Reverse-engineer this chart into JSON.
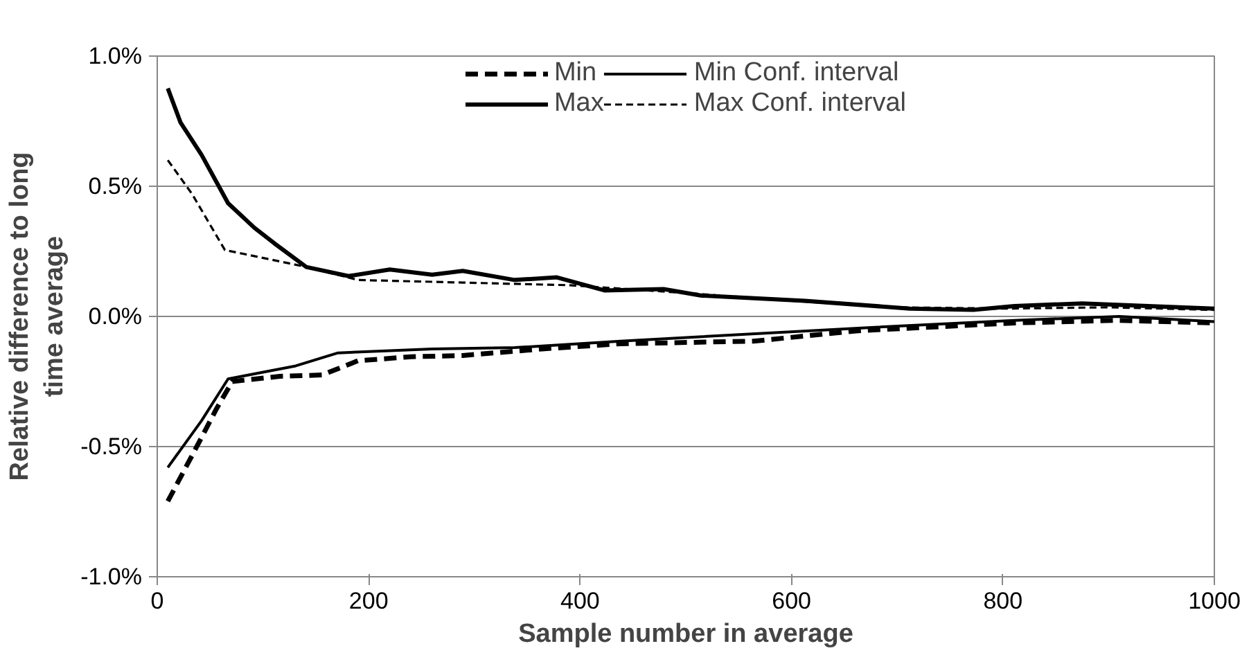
{
  "chart_data": {
    "type": "line",
    "xlabel": "Sample number in average",
    "ylabel": "Relative difference to long time average",
    "xlim": [
      0,
      1000
    ],
    "xticks": [
      0,
      200,
      400,
      600,
      800,
      1000
    ],
    "ylim": [
      -1.0,
      1.0
    ],
    "yticks": [
      {
        "value": -1.0,
        "label": "-1.0%"
      },
      {
        "value": -0.5,
        "label": "-0.5%"
      },
      {
        "value": 0.0,
        "label": "0.0%"
      },
      {
        "value": 0.5,
        "label": "0.5%"
      },
      {
        "value": 1.0,
        "label": "1.0%"
      }
    ],
    "grid": "y",
    "legend": "top",
    "series": [
      {
        "name": "Min",
        "color": "#000000",
        "line_style": "dashed",
        "x": [
          10,
          40,
          56,
          71,
          116,
          156,
          190,
          240,
          289,
          364,
          438,
          564,
          663,
          811,
          910,
          1000
        ],
        "values": [
          -0.71,
          -0.48,
          -0.355,
          -0.25,
          -0.23,
          -0.225,
          -0.17,
          -0.155,
          -0.15,
          -0.125,
          -0.105,
          -0.095,
          -0.055,
          -0.025,
          -0.015,
          -0.025
        ]
      },
      {
        "name": "Max",
        "color": "#000000",
        "line_style": "solid",
        "x": [
          10,
          22,
          42,
          67,
          92,
          111,
          141,
          181,
          220,
          260,
          289,
          338,
          378,
          423,
          479,
          515,
          613,
          712,
          772,
          811,
          875,
          1000
        ],
        "values": [
          0.876,
          0.745,
          0.62,
          0.435,
          0.34,
          0.28,
          0.19,
          0.155,
          0.18,
          0.16,
          0.175,
          0.14,
          0.15,
          0.1,
          0.105,
          0.08,
          0.06,
          0.03,
          0.025,
          0.04,
          0.05,
          0.03
        ]
      },
      {
        "name": "Min Conf. interval",
        "color": "#000000",
        "line_style": "solid",
        "x": [
          10,
          42,
          67,
          131,
          171,
          260,
          338,
          438,
          663,
          811,
          910,
          1000
        ],
        "values": [
          -0.58,
          -0.4,
          -0.24,
          -0.19,
          -0.14,
          -0.125,
          -0.12,
          -0.095,
          -0.045,
          -0.015,
          0.0,
          -0.02
        ]
      },
      {
        "name": "Max Conf. interval",
        "color": "#000000",
        "line_style": "dashed",
        "x": [
          10,
          33,
          64,
          82,
          141,
          190,
          289,
          389,
          500,
          600,
          700,
          800,
          900,
          1000
        ],
        "values": [
          0.6,
          0.47,
          0.255,
          0.24,
          0.19,
          0.14,
          0.13,
          0.12,
          0.09,
          0.06,
          0.035,
          0.03,
          0.035,
          0.025
        ]
      }
    ]
  }
}
